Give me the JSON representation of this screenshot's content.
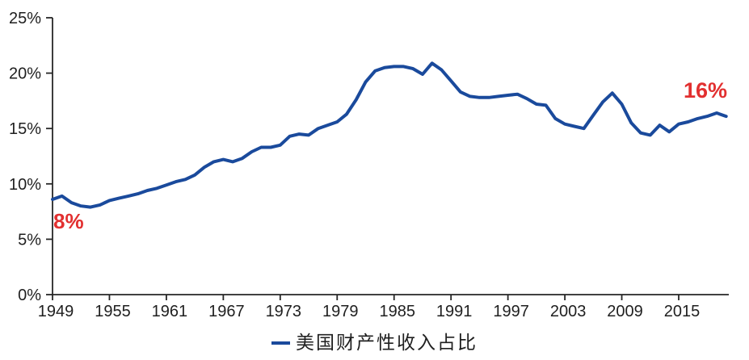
{
  "chart_data": {
    "type": "line",
    "title": "",
    "legend": "美国财产性收入占比",
    "legend_position": "bottom-center",
    "grid": false,
    "line_color": "#1a4a9c",
    "annotation_color": "#e23030",
    "axis_color": "#262626",
    "text_color": "#1f1f1f",
    "background_color": "#ffffff",
    "ylabel": "",
    "xlabel": "",
    "ylim": [
      0,
      25
    ],
    "xlim": [
      1949,
      2020
    ],
    "y_ticks": [
      {
        "value": 0,
        "label": "0%"
      },
      {
        "value": 5,
        "label": "5%"
      },
      {
        "value": 10,
        "label": "10%"
      },
      {
        "value": 15,
        "label": "15%"
      },
      {
        "value": 20,
        "label": "20%"
      },
      {
        "value": 25,
        "label": "25%"
      }
    ],
    "x_ticks": [
      {
        "value": 1949,
        "label": "1949"
      },
      {
        "value": 1955,
        "label": "1955"
      },
      {
        "value": 1961,
        "label": "1961"
      },
      {
        "value": 1967,
        "label": "1967"
      },
      {
        "value": 1973,
        "label": "1973"
      },
      {
        "value": 1979,
        "label": "1979"
      },
      {
        "value": 1985,
        "label": "1985"
      },
      {
        "value": 1991,
        "label": "1991"
      },
      {
        "value": 1997,
        "label": "1997"
      },
      {
        "value": 2003,
        "label": "2003"
      },
      {
        "value": 2009,
        "label": "2009"
      },
      {
        "value": 2015,
        "label": "2015"
      }
    ],
    "x": [
      1949,
      1950,
      1951,
      1952,
      1953,
      1954,
      1955,
      1956,
      1957,
      1958,
      1959,
      1960,
      1961,
      1962,
      1963,
      1964,
      1965,
      1966,
      1967,
      1968,
      1969,
      1970,
      1971,
      1972,
      1973,
      1974,
      1975,
      1976,
      1977,
      1978,
      1979,
      1980,
      1981,
      1982,
      1983,
      1984,
      1985,
      1986,
      1987,
      1988,
      1989,
      1990,
      1991,
      1992,
      1993,
      1994,
      1995,
      1996,
      1997,
      1998,
      1999,
      2000,
      2001,
      2002,
      2003,
      2004,
      2005,
      2006,
      2007,
      2008,
      2009,
      2010,
      2011,
      2012,
      2013,
      2014,
      2015,
      2016,
      2017,
      2018,
      2019,
      2020
    ],
    "series": [
      {
        "name": "美国财产性收入占比",
        "values": [
          8.6,
          8.9,
          8.3,
          8.0,
          7.9,
          8.1,
          8.5,
          8.7,
          8.9,
          9.1,
          9.4,
          9.6,
          9.9,
          10.2,
          10.4,
          10.8,
          11.5,
          12.0,
          12.2,
          12.0,
          12.3,
          12.9,
          13.3,
          13.3,
          13.5,
          14.3,
          14.5,
          14.4,
          15.0,
          15.3,
          15.6,
          16.3,
          17.6,
          19.2,
          20.2,
          20.5,
          20.6,
          20.6,
          20.4,
          19.9,
          20.9,
          20.3,
          19.3,
          18.3,
          17.9,
          17.8,
          17.8,
          17.9,
          18.0,
          18.1,
          17.7,
          17.2,
          17.1,
          15.9,
          15.4,
          15.2,
          15.0,
          16.2,
          17.4,
          18.2,
          17.2,
          15.5,
          14.6,
          14.4,
          15.3,
          14.7,
          15.4,
          15.6,
          15.9,
          16.1,
          16.4,
          16.1
        ]
      }
    ],
    "annotations": [
      {
        "text": "8%",
        "year": 1949,
        "value": 8.6,
        "placement": "below-line-start"
      },
      {
        "text": "16%",
        "year": 2019,
        "value": 16.4,
        "placement": "above-line-end"
      }
    ]
  }
}
